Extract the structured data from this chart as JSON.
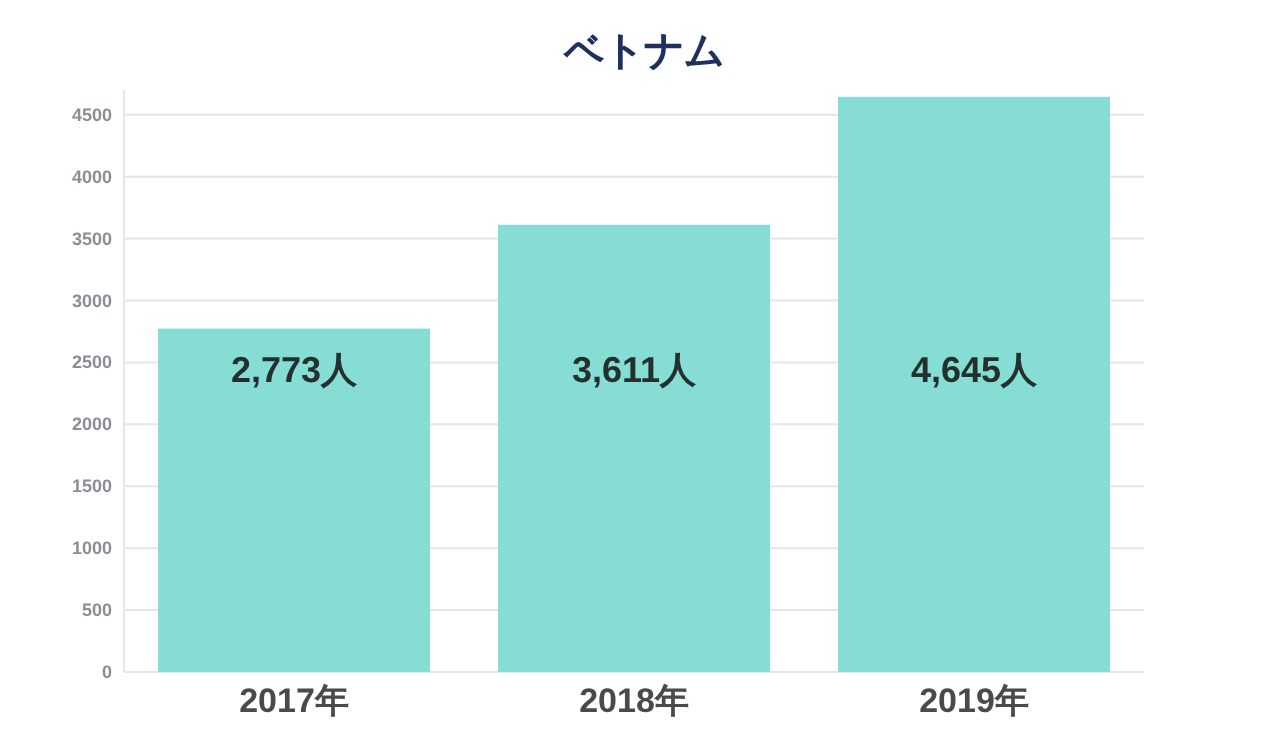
{
  "chart_data": {
    "type": "bar",
    "title": "ベトナム",
    "categories": [
      "2017年",
      "2018年",
      "2019年"
    ],
    "values": [
      2773,
      3611,
      4645
    ],
    "value_labels": [
      "2,773人",
      "3,611人",
      "4,645人"
    ],
    "color": "#86ddd4",
    "ylim": [
      0,
      4700
    ],
    "yticks": [
      0,
      500,
      1000,
      1500,
      2000,
      2500,
      3000,
      3500,
      4000,
      4500
    ],
    "grid": "y"
  }
}
